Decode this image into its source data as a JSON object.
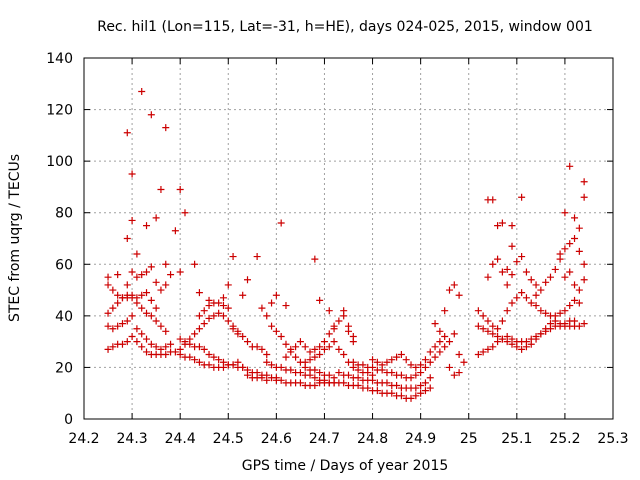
{
  "chart_data": {
    "type": "scatter",
    "title": "Rec. hil1 (Lon=115, Lat=-31, h=HE), days 024-025, 2015, window 001",
    "xlabel": "GPS time / Days of year 2015",
    "ylabel": "STEC from uqrg / TECUs",
    "xlim": [
      24.2,
      25.3
    ],
    "ylim": [
      0,
      140
    ],
    "xticks": [
      "24.2",
      "24.3",
      "24.4",
      "24.5",
      "24.6",
      "24.7",
      "24.8",
      "24.9",
      "25",
      "25.1",
      "25.2",
      "25.3"
    ],
    "yticks": [
      "0",
      "20",
      "40",
      "60",
      "80",
      "100",
      "120",
      "140"
    ],
    "grid": true,
    "marker": "plus",
    "color": "#cc0000",
    "points": [
      [
        24.25,
        27
      ],
      [
        24.26,
        28
      ],
      [
        24.27,
        29
      ],
      [
        24.28,
        29
      ],
      [
        24.29,
        30
      ],
      [
        24.3,
        32
      ],
      [
        24.31,
        30
      ],
      [
        24.32,
        28
      ],
      [
        24.33,
        26
      ],
      [
        24.34,
        25
      ],
      [
        24.35,
        25
      ],
      [
        24.36,
        25
      ],
      [
        24.37,
        25
      ],
      [
        24.38,
        26
      ],
      [
        24.39,
        26
      ],
      [
        24.25,
        36
      ],
      [
        24.26,
        35
      ],
      [
        24.27,
        36
      ],
      [
        24.28,
        37
      ],
      [
        24.29,
        38
      ],
      [
        24.3,
        40
      ],
      [
        24.31,
        35
      ],
      [
        24.32,
        33
      ],
      [
        24.33,
        31
      ],
      [
        24.34,
        29
      ],
      [
        24.35,
        28
      ],
      [
        24.36,
        27
      ],
      [
        24.37,
        28
      ],
      [
        24.38,
        29
      ],
      [
        24.25,
        41
      ],
      [
        24.26,
        43
      ],
      [
        24.27,
        45
      ],
      [
        24.28,
        47
      ],
      [
        24.29,
        47
      ],
      [
        24.3,
        48
      ],
      [
        24.31,
        45
      ],
      [
        24.32,
        43
      ],
      [
        24.33,
        41
      ],
      [
        24.34,
        40
      ],
      [
        24.35,
        38
      ],
      [
        24.36,
        36
      ],
      [
        24.37,
        34
      ],
      [
        24.25,
        52
      ],
      [
        24.26,
        50
      ],
      [
        24.27,
        48
      ],
      [
        24.28,
        47
      ],
      [
        24.29,
        48
      ],
      [
        24.3,
        47
      ],
      [
        24.31,
        47
      ],
      [
        24.32,
        48
      ],
      [
        24.33,
        49
      ],
      [
        24.34,
        46
      ],
      [
        24.35,
        43
      ],
      [
        24.25,
        55
      ],
      [
        24.27,
        56
      ],
      [
        24.29,
        52
      ],
      [
        24.3,
        57
      ],
      [
        24.31,
        55
      ],
      [
        24.32,
        56
      ],
      [
        24.33,
        57
      ],
      [
        24.34,
        59
      ],
      [
        24.35,
        53
      ],
      [
        24.36,
        50
      ],
      [
        24.37,
        52
      ],
      [
        24.29,
        111
      ],
      [
        24.3,
        95
      ],
      [
        24.32,
        127
      ],
      [
        24.34,
        118
      ],
      [
        24.37,
        113
      ],
      [
        24.36,
        89
      ],
      [
        24.4,
        89
      ],
      [
        24.41,
        80
      ],
      [
        24.39,
        73
      ],
      [
        24.35,
        78
      ],
      [
        24.33,
        75
      ],
      [
        24.3,
        77
      ],
      [
        24.29,
        70
      ],
      [
        24.31,
        64
      ],
      [
        24.37,
        60
      ],
      [
        24.38,
        56
      ],
      [
        24.4,
        57
      ],
      [
        24.4,
        31
      ],
      [
        24.41,
        30
      ],
      [
        24.42,
        29
      ],
      [
        24.43,
        28
      ],
      [
        24.44,
        28
      ],
      [
        24.45,
        27
      ],
      [
        24.46,
        25
      ],
      [
        24.47,
        24
      ],
      [
        24.48,
        23
      ],
      [
        24.49,
        22
      ],
      [
        24.5,
        21
      ],
      [
        24.51,
        21
      ],
      [
        24.52,
        20
      ],
      [
        24.53,
        20
      ],
      [
        24.54,
        19
      ],
      [
        24.55,
        18
      ],
      [
        24.56,
        18
      ],
      [
        24.57,
        17
      ],
      [
        24.58,
        17
      ],
      [
        24.59,
        16
      ],
      [
        24.6,
        16
      ],
      [
        24.4,
        25
      ],
      [
        24.41,
        24
      ],
      [
        24.42,
        24
      ],
      [
        24.43,
        23
      ],
      [
        24.44,
        22
      ],
      [
        24.45,
        21
      ],
      [
        24.46,
        21
      ],
      [
        24.47,
        20
      ],
      [
        24.48,
        20
      ],
      [
        24.49,
        20
      ],
      [
        24.5,
        21
      ],
      [
        24.51,
        21
      ],
      [
        24.52,
        22
      ],
      [
        24.53,
        20
      ],
      [
        24.54,
        17
      ],
      [
        24.55,
        16
      ],
      [
        24.56,
        16
      ],
      [
        24.57,
        16
      ],
      [
        24.58,
        15
      ],
      [
        24.4,
        27
      ],
      [
        24.41,
        29
      ],
      [
        24.42,
        31
      ],
      [
        24.43,
        33
      ],
      [
        24.44,
        35
      ],
      [
        24.45,
        37
      ],
      [
        24.46,
        39
      ],
      [
        24.47,
        40
      ],
      [
        24.48,
        41
      ],
      [
        24.49,
        40
      ],
      [
        24.5,
        38
      ],
      [
        24.51,
        36
      ],
      [
        24.52,
        34
      ],
      [
        24.53,
        32
      ],
      [
        24.54,
        30
      ],
      [
        24.55,
        28
      ],
      [
        24.56,
        28
      ],
      [
        24.57,
        27
      ],
      [
        24.58,
        25
      ],
      [
        24.44,
        40
      ],
      [
        24.45,
        42
      ],
      [
        24.46,
        44
      ],
      [
        24.47,
        45
      ],
      [
        24.48,
        45
      ],
      [
        24.49,
        44
      ],
      [
        24.5,
        43
      ],
      [
        24.51,
        35
      ],
      [
        24.52,
        33
      ],
      [
        24.43,
        60
      ],
      [
        24.44,
        49
      ],
      [
        24.46,
        46
      ],
      [
        24.49,
        47
      ],
      [
        24.5,
        52
      ],
      [
        24.51,
        63
      ],
      [
        24.53,
        48
      ],
      [
        24.54,
        54
      ],
      [
        24.56,
        63
      ],
      [
        24.57,
        43
      ],
      [
        24.58,
        40
      ],
      [
        24.59,
        45
      ],
      [
        24.6,
        48
      ],
      [
        24.61,
        76
      ],
      [
        24.62,
        44
      ],
      [
        24.59,
        36
      ],
      [
        24.6,
        34
      ],
      [
        24.61,
        32
      ],
      [
        24.62,
        29
      ],
      [
        24.63,
        27
      ],
      [
        24.64,
        24
      ],
      [
        24.65,
        22
      ],
      [
        24.66,
        20
      ],
      [
        24.67,
        19
      ],
      [
        24.68,
        19
      ],
      [
        24.69,
        18
      ],
      [
        24.7,
        17
      ],
      [
        24.71,
        17
      ],
      [
        24.72,
        16
      ],
      [
        24.58,
        22
      ],
      [
        24.59,
        21
      ],
      [
        24.6,
        20
      ],
      [
        24.61,
        20
      ],
      [
        24.62,
        19
      ],
      [
        24.63,
        19
      ],
      [
        24.64,
        18
      ],
      [
        24.65,
        18
      ],
      [
        24.66,
        17
      ],
      [
        24.67,
        17
      ],
      [
        24.68,
        16
      ],
      [
        24.69,
        15
      ],
      [
        24.7,
        15
      ],
      [
        24.71,
        14
      ],
      [
        24.72,
        14
      ],
      [
        24.6,
        15
      ],
      [
        24.61,
        15
      ],
      [
        24.62,
        14
      ],
      [
        24.63,
        14
      ],
      [
        24.64,
        14
      ],
      [
        24.65,
        14
      ],
      [
        24.66,
        13
      ],
      [
        24.67,
        13
      ],
      [
        24.68,
        13
      ],
      [
        24.69,
        14
      ],
      [
        24.7,
        14
      ],
      [
        24.71,
        14
      ],
      [
        24.72,
        14
      ],
      [
        24.73,
        14
      ],
      [
        24.74,
        14
      ],
      [
        24.75,
        13
      ],
      [
        24.76,
        13
      ],
      [
        24.77,
        13
      ],
      [
        24.78,
        12
      ],
      [
        24.79,
        12
      ],
      [
        24.8,
        11
      ],
      [
        24.81,
        11
      ],
      [
        24.82,
        10
      ],
      [
        24.83,
        10
      ],
      [
        24.84,
        10
      ],
      [
        24.85,
        9
      ],
      [
        24.86,
        9
      ],
      [
        24.87,
        8
      ],
      [
        24.88,
        8
      ],
      [
        24.89,
        9
      ],
      [
        24.9,
        10
      ],
      [
        24.91,
        11
      ],
      [
        24.92,
        12
      ],
      [
        24.62,
        24
      ],
      [
        24.63,
        26
      ],
      [
        24.64,
        28
      ],
      [
        24.65,
        30
      ],
      [
        24.66,
        28
      ],
      [
        24.67,
        26
      ],
      [
        24.68,
        27
      ],
      [
        24.69,
        28
      ],
      [
        24.7,
        30
      ],
      [
        24.71,
        33
      ],
      [
        24.72,
        35
      ],
      [
        24.73,
        38
      ],
      [
        24.74,
        40
      ],
      [
        24.75,
        36
      ],
      [
        24.76,
        32
      ],
      [
        24.66,
        22
      ],
      [
        24.67,
        23
      ],
      [
        24.68,
        24
      ],
      [
        24.69,
        25
      ],
      [
        24.7,
        27
      ],
      [
        24.71,
        28
      ],
      [
        24.72,
        30
      ],
      [
        24.73,
        27
      ],
      [
        24.74,
        25
      ],
      [
        24.75,
        22
      ],
      [
        24.76,
        20
      ],
      [
        24.77,
        19
      ],
      [
        24.78,
        18
      ],
      [
        24.79,
        18
      ],
      [
        24.8,
        17
      ],
      [
        24.68,
        62
      ],
      [
        24.69,
        46
      ],
      [
        24.71,
        42
      ],
      [
        24.72,
        36
      ],
      [
        24.74,
        42
      ],
      [
        24.75,
        34
      ],
      [
        24.76,
        30
      ],
      [
        24.73,
        18
      ],
      [
        24.74,
        17
      ],
      [
        24.75,
        17
      ],
      [
        24.76,
        16
      ],
      [
        24.77,
        16
      ],
      [
        24.78,
        15
      ],
      [
        24.79,
        15
      ],
      [
        24.8,
        15
      ],
      [
        24.81,
        14
      ],
      [
        24.82,
        14
      ],
      [
        24.83,
        14
      ],
      [
        24.84,
        13
      ],
      [
        24.85,
        13
      ],
      [
        24.86,
        12
      ],
      [
        24.87,
        12
      ],
      [
        24.88,
        12
      ],
      [
        24.89,
        12
      ],
      [
        24.9,
        13
      ],
      [
        24.91,
        14
      ],
      [
        24.92,
        16
      ],
      [
        24.76,
        22
      ],
      [
        24.77,
        21
      ],
      [
        24.78,
        21
      ],
      [
        24.79,
        20
      ],
      [
        24.8,
        20
      ],
      [
        24.81,
        19
      ],
      [
        24.82,
        19
      ],
      [
        24.83,
        18
      ],
      [
        24.84,
        18
      ],
      [
        24.85,
        17
      ],
      [
        24.86,
        17
      ],
      [
        24.87,
        16
      ],
      [
        24.88,
        16
      ],
      [
        24.89,
        17
      ],
      [
        24.9,
        18
      ],
      [
        24.91,
        20
      ],
      [
        24.92,
        22
      ],
      [
        24.93,
        24
      ],
      [
        24.94,
        26
      ],
      [
        24.8,
        23
      ],
      [
        24.81,
        22
      ],
      [
        24.82,
        21
      ],
      [
        24.83,
        22
      ],
      [
        24.84,
        23
      ],
      [
        24.85,
        24
      ],
      [
        24.86,
        25
      ],
      [
        24.87,
        23
      ],
      [
        24.88,
        21
      ],
      [
        24.89,
        20
      ],
      [
        24.9,
        21
      ],
      [
        24.91,
        23
      ],
      [
        24.92,
        26
      ],
      [
        24.93,
        28
      ],
      [
        24.94,
        30
      ],
      [
        24.95,
        32
      ],
      [
        24.93,
        37
      ],
      [
        24.94,
        34
      ],
      [
        24.95,
        42
      ],
      [
        24.96,
        50
      ],
      [
        24.97,
        52
      ],
      [
        24.98,
        48
      ],
      [
        24.97,
        33
      ],
      [
        24.96,
        30
      ],
      [
        24.95,
        28
      ],
      [
        24.98,
        25
      ],
      [
        24.99,
        22
      ],
      [
        24.98,
        18
      ],
      [
        24.97,
        17
      ],
      [
        24.96,
        20
      ],
      [
        25.02,
        25
      ],
      [
        25.03,
        26
      ],
      [
        25.04,
        27
      ],
      [
        25.05,
        28
      ],
      [
        25.06,
        30
      ],
      [
        25.07,
        31
      ],
      [
        25.08,
        32
      ],
      [
        25.09,
        31
      ],
      [
        25.1,
        30
      ],
      [
        25.11,
        30
      ],
      [
        25.12,
        30
      ],
      [
        25.13,
        31
      ],
      [
        25.14,
        32
      ],
      [
        25.15,
        33
      ],
      [
        25.16,
        34
      ],
      [
        25.17,
        35
      ],
      [
        25.18,
        36
      ],
      [
        25.19,
        36
      ],
      [
        25.2,
        36
      ],
      [
        25.21,
        36
      ],
      [
        25.22,
        36
      ],
      [
        25.23,
        36
      ],
      [
        25.24,
        37
      ],
      [
        25.02,
        36
      ],
      [
        25.03,
        35
      ],
      [
        25.04,
        34
      ],
      [
        25.05,
        33
      ],
      [
        25.06,
        32
      ],
      [
        25.07,
        31
      ],
      [
        25.08,
        30
      ],
      [
        25.09,
        29
      ],
      [
        25.1,
        28
      ],
      [
        25.11,
        27
      ],
      [
        25.12,
        28
      ],
      [
        25.13,
        29
      ],
      [
        25.14,
        31
      ],
      [
        25.15,
        33
      ],
      [
        25.16,
        35
      ],
      [
        25.17,
        37
      ],
      [
        25.18,
        38
      ],
      [
        25.19,
        37
      ],
      [
        25.2,
        37
      ],
      [
        25.21,
        38
      ],
      [
        25.22,
        38
      ],
      [
        25.02,
        42
      ],
      [
        25.03,
        40
      ],
      [
        25.04,
        38
      ],
      [
        25.05,
        36
      ],
      [
        25.06,
        35
      ],
      [
        25.07,
        38
      ],
      [
        25.08,
        42
      ],
      [
        25.09,
        45
      ],
      [
        25.1,
        47
      ],
      [
        25.11,
        49
      ],
      [
        25.12,
        47
      ],
      [
        25.13,
        45
      ],
      [
        25.14,
        44
      ],
      [
        25.15,
        42
      ],
      [
        25.16,
        41
      ],
      [
        25.17,
        40
      ],
      [
        25.18,
        40
      ],
      [
        25.19,
        41
      ],
      [
        25.2,
        42
      ],
      [
        25.21,
        44
      ],
      [
        25.22,
        46
      ],
      [
        25.23,
        50
      ],
      [
        25.24,
        54
      ],
      [
        25.04,
        55
      ],
      [
        25.05,
        60
      ],
      [
        25.06,
        62
      ],
      [
        25.07,
        57
      ],
      [
        25.08,
        52
      ],
      [
        25.09,
        56
      ],
      [
        25.1,
        61
      ],
      [
        25.11,
        63
      ],
      [
        25.12,
        57
      ],
      [
        25.13,
        54
      ],
      [
        25.14,
        52
      ],
      [
        25.15,
        50
      ],
      [
        25.16,
        53
      ],
      [
        25.17,
        55
      ],
      [
        25.18,
        58
      ],
      [
        25.19,
        62
      ],
      [
        25.2,
        66
      ],
      [
        25.21,
        68
      ],
      [
        25.22,
        70
      ],
      [
        25.23,
        65
      ],
      [
        25.24,
        60
      ],
      [
        25.04,
        85
      ],
      [
        25.05,
        85
      ],
      [
        25.06,
        75
      ],
      [
        25.07,
        76
      ],
      [
        25.09,
        75
      ],
      [
        25.11,
        86
      ],
      [
        25.09,
        67
      ],
      [
        25.08,
        58
      ],
      [
        25.14,
        48
      ],
      [
        25.19,
        64
      ],
      [
        25.2,
        80
      ],
      [
        25.21,
        98
      ],
      [
        25.22,
        78
      ],
      [
        25.23,
        74
      ],
      [
        25.24,
        86
      ],
      [
        25.24,
        92
      ],
      [
        25.23,
        45
      ],
      [
        25.22,
        52
      ],
      [
        25.21,
        57
      ],
      [
        25.2,
        55
      ]
    ]
  }
}
